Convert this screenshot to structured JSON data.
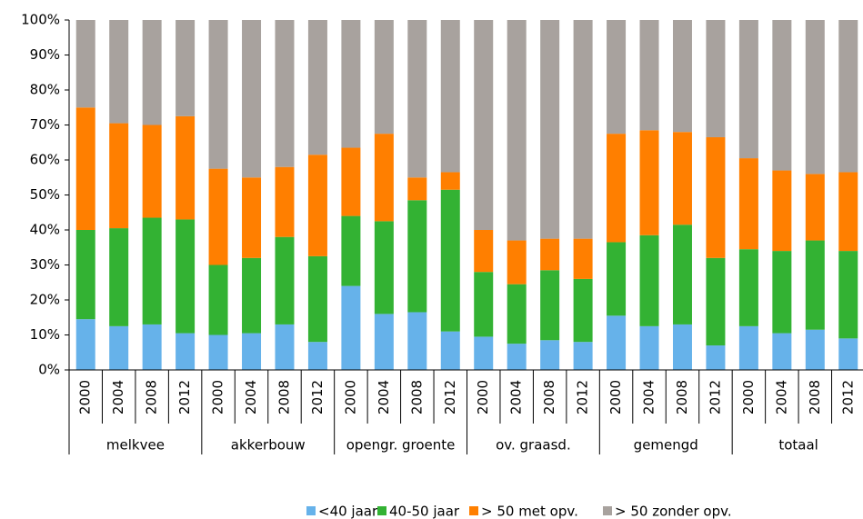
{
  "chart_data": {
    "type": "stacked_bar",
    "categories": [
      "2000",
      "2004",
      "2008",
      "2012",
      "2000",
      "2004",
      "2008",
      "2012",
      "2000",
      "2004",
      "2008",
      "2012",
      "2000",
      "2004",
      "2008",
      "2012",
      "2000",
      "2004",
      "2008",
      "2012",
      "2000",
      "2004",
      "2008",
      "2012"
    ],
    "groups": [
      "melkvee",
      "akkerbouw",
      "opengr. groente",
      "ov. graasd.",
      "gemengd",
      "totaal"
    ],
    "series": [
      {
        "name": "<40 jaar",
        "color": "#66B2EA",
        "values": [
          14.5,
          12.5,
          13,
          10.5,
          10,
          10.5,
          13,
          8,
          24,
          16,
          16.5,
          11,
          9.5,
          7.5,
          8.5,
          8,
          15.5,
          12.5,
          13,
          7,
          12.5,
          10.5,
          11.5,
          9
        ]
      },
      {
        "name": "40-50 jaar",
        "color": "#33B233",
        "values": [
          25.5,
          28,
          30.5,
          32.5,
          20,
          21.5,
          25,
          24.5,
          20,
          26.5,
          32,
          40.5,
          18.5,
          17,
          20,
          18,
          21,
          26,
          28.5,
          25,
          22,
          23.5,
          25.5,
          25
        ]
      },
      {
        "name": "> 50 met opv.",
        "color": "#FF7F00",
        "values": [
          35,
          30,
          26.5,
          29.5,
          27.5,
          23,
          20,
          29,
          19.5,
          25,
          6.5,
          5,
          12,
          12.5,
          9,
          11.5,
          31,
          30,
          26.5,
          34.5,
          26,
          23,
          19,
          22.5
        ]
      },
      {
        "name": "> 50 zonder opv.",
        "color": "#A8A29E",
        "values": [
          25,
          29.5,
          30,
          27.5,
          42.5,
          45,
          42,
          38.5,
          36.5,
          32.5,
          45,
          43.5,
          60,
          63,
          62.5,
          62.5,
          32.5,
          31.5,
          32,
          33.5,
          39.5,
          43,
          44,
          43.5
        ]
      }
    ],
    "ylim": [
      0,
      100
    ],
    "yticks": [
      {
        "value": 0,
        "label": "0%"
      },
      {
        "value": 10,
        "label": "10%"
      },
      {
        "value": 20,
        "label": "20%"
      },
      {
        "value": 30,
        "label": "30%"
      },
      {
        "value": 40,
        "label": "40%"
      },
      {
        "value": 50,
        "label": "50%"
      },
      {
        "value": 60,
        "label": "60%"
      },
      {
        "value": 70,
        "label": "70%"
      },
      {
        "value": 80,
        "label": "80%"
      },
      {
        "value": 90,
        "label": "90%"
      },
      {
        "value": 100,
        "label": "100%"
      }
    ]
  }
}
